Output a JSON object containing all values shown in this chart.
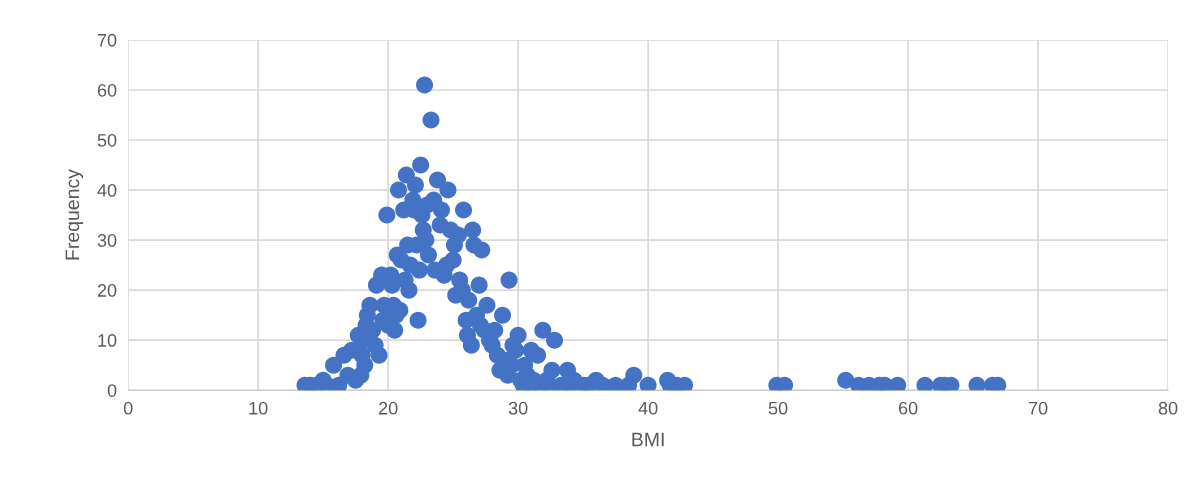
{
  "chart_data": {
    "type": "scatter",
    "xlabel": "BMI",
    "ylabel": "Frequency",
    "xlim": [
      0,
      80
    ],
    "ylim": [
      0,
      70
    ],
    "xticks": [
      0,
      10,
      20,
      30,
      40,
      50,
      60,
      70,
      80
    ],
    "yticks": [
      0,
      10,
      20,
      30,
      40,
      50,
      60,
      70
    ],
    "grid": true,
    "marker": "circle",
    "series": [
      {
        "color": "#4472c4",
        "x": [
          13.6,
          14,
          14.5,
          15,
          15.3,
          15.8,
          16.2,
          16.6,
          16.9,
          17.2,
          17.5,
          17.7,
          17.9,
          18,
          18.1,
          18.2,
          18.3,
          18.4,
          18.6,
          18.8,
          19,
          19.1,
          19.3,
          19.5,
          19.6,
          19.7,
          19.9,
          20,
          20.2,
          20.3,
          20.4,
          20.5,
          20.6,
          20.7,
          20.8,
          20.9,
          21,
          21.2,
          21.3,
          21.4,
          21.5,
          21.6,
          21.7,
          21.9,
          22,
          22.1,
          22.2,
          22.3,
          22.4,
          22.5,
          22.6,
          22.7,
          22.8,
          22.9,
          23,
          23.1,
          23.3,
          23.5,
          23.6,
          23.8,
          24,
          24.1,
          24.3,
          24.5,
          24.6,
          24.8,
          25,
          25.1,
          25.2,
          25.4,
          25.5,
          25.7,
          25.8,
          26,
          26.1,
          26.2,
          26.4,
          26.5,
          26.6,
          26.8,
          27,
          27.1,
          27.2,
          27.4,
          27.6,
          27.8,
          28,
          28.2,
          28.4,
          28.6,
          28.8,
          29,
          29.2,
          29.3,
          29.5,
          29.6,
          29.8,
          30,
          30.2,
          30.4,
          30.5,
          30.7,
          30.9,
          31,
          31.2,
          31.5,
          31.7,
          31.9,
          32.2,
          32.4,
          32.6,
          32.8,
          33.3,
          33.8,
          34,
          34.3,
          35,
          35.4,
          36,
          36.5,
          37.5,
          38.5,
          38.9,
          40,
          41.5,
          41.7,
          42.2,
          42.8,
          49.9,
          50.5,
          55.2,
          56.2,
          57,
          57.8,
          58.2,
          59.2,
          61.3,
          62.5,
          62.8,
          63.3,
          65.3,
          66.5,
          66.9
        ],
        "values": [
          1,
          1,
          1,
          2,
          1,
          5,
          1,
          7,
          3,
          8,
          2,
          11,
          3,
          7,
          10,
          5,
          13,
          15,
          17,
          12,
          9,
          21,
          7,
          23,
          14,
          17,
          35,
          13,
          23,
          21,
          17,
          12,
          15,
          27,
          40,
          16,
          26,
          36,
          22,
          43,
          29,
          20,
          25,
          38,
          36,
          41,
          29,
          14,
          24,
          45,
          35,
          32,
          61,
          30,
          37,
          27,
          54,
          38,
          24,
          42,
          33,
          36,
          23,
          25,
          40,
          32,
          26,
          29,
          19,
          31,
          22,
          20,
          36,
          14,
          11,
          18,
          9,
          32,
          29,
          15,
          21,
          13,
          28,
          12,
          17,
          10,
          9,
          12,
          7,
          4,
          15,
          6,
          3,
          22,
          5,
          9,
          8,
          11,
          2,
          1,
          5,
          3,
          1,
          8,
          2,
          7,
          1,
          12,
          2,
          1,
          4,
          10,
          1,
          4,
          1,
          2,
          1,
          1,
          2,
          1,
          1,
          1,
          3,
          1,
          2,
          1,
          1,
          1,
          1,
          1,
          2,
          1,
          1,
          1,
          1,
          1,
          1,
          1,
          1,
          1,
          1,
          1,
          1
        ]
      }
    ]
  }
}
